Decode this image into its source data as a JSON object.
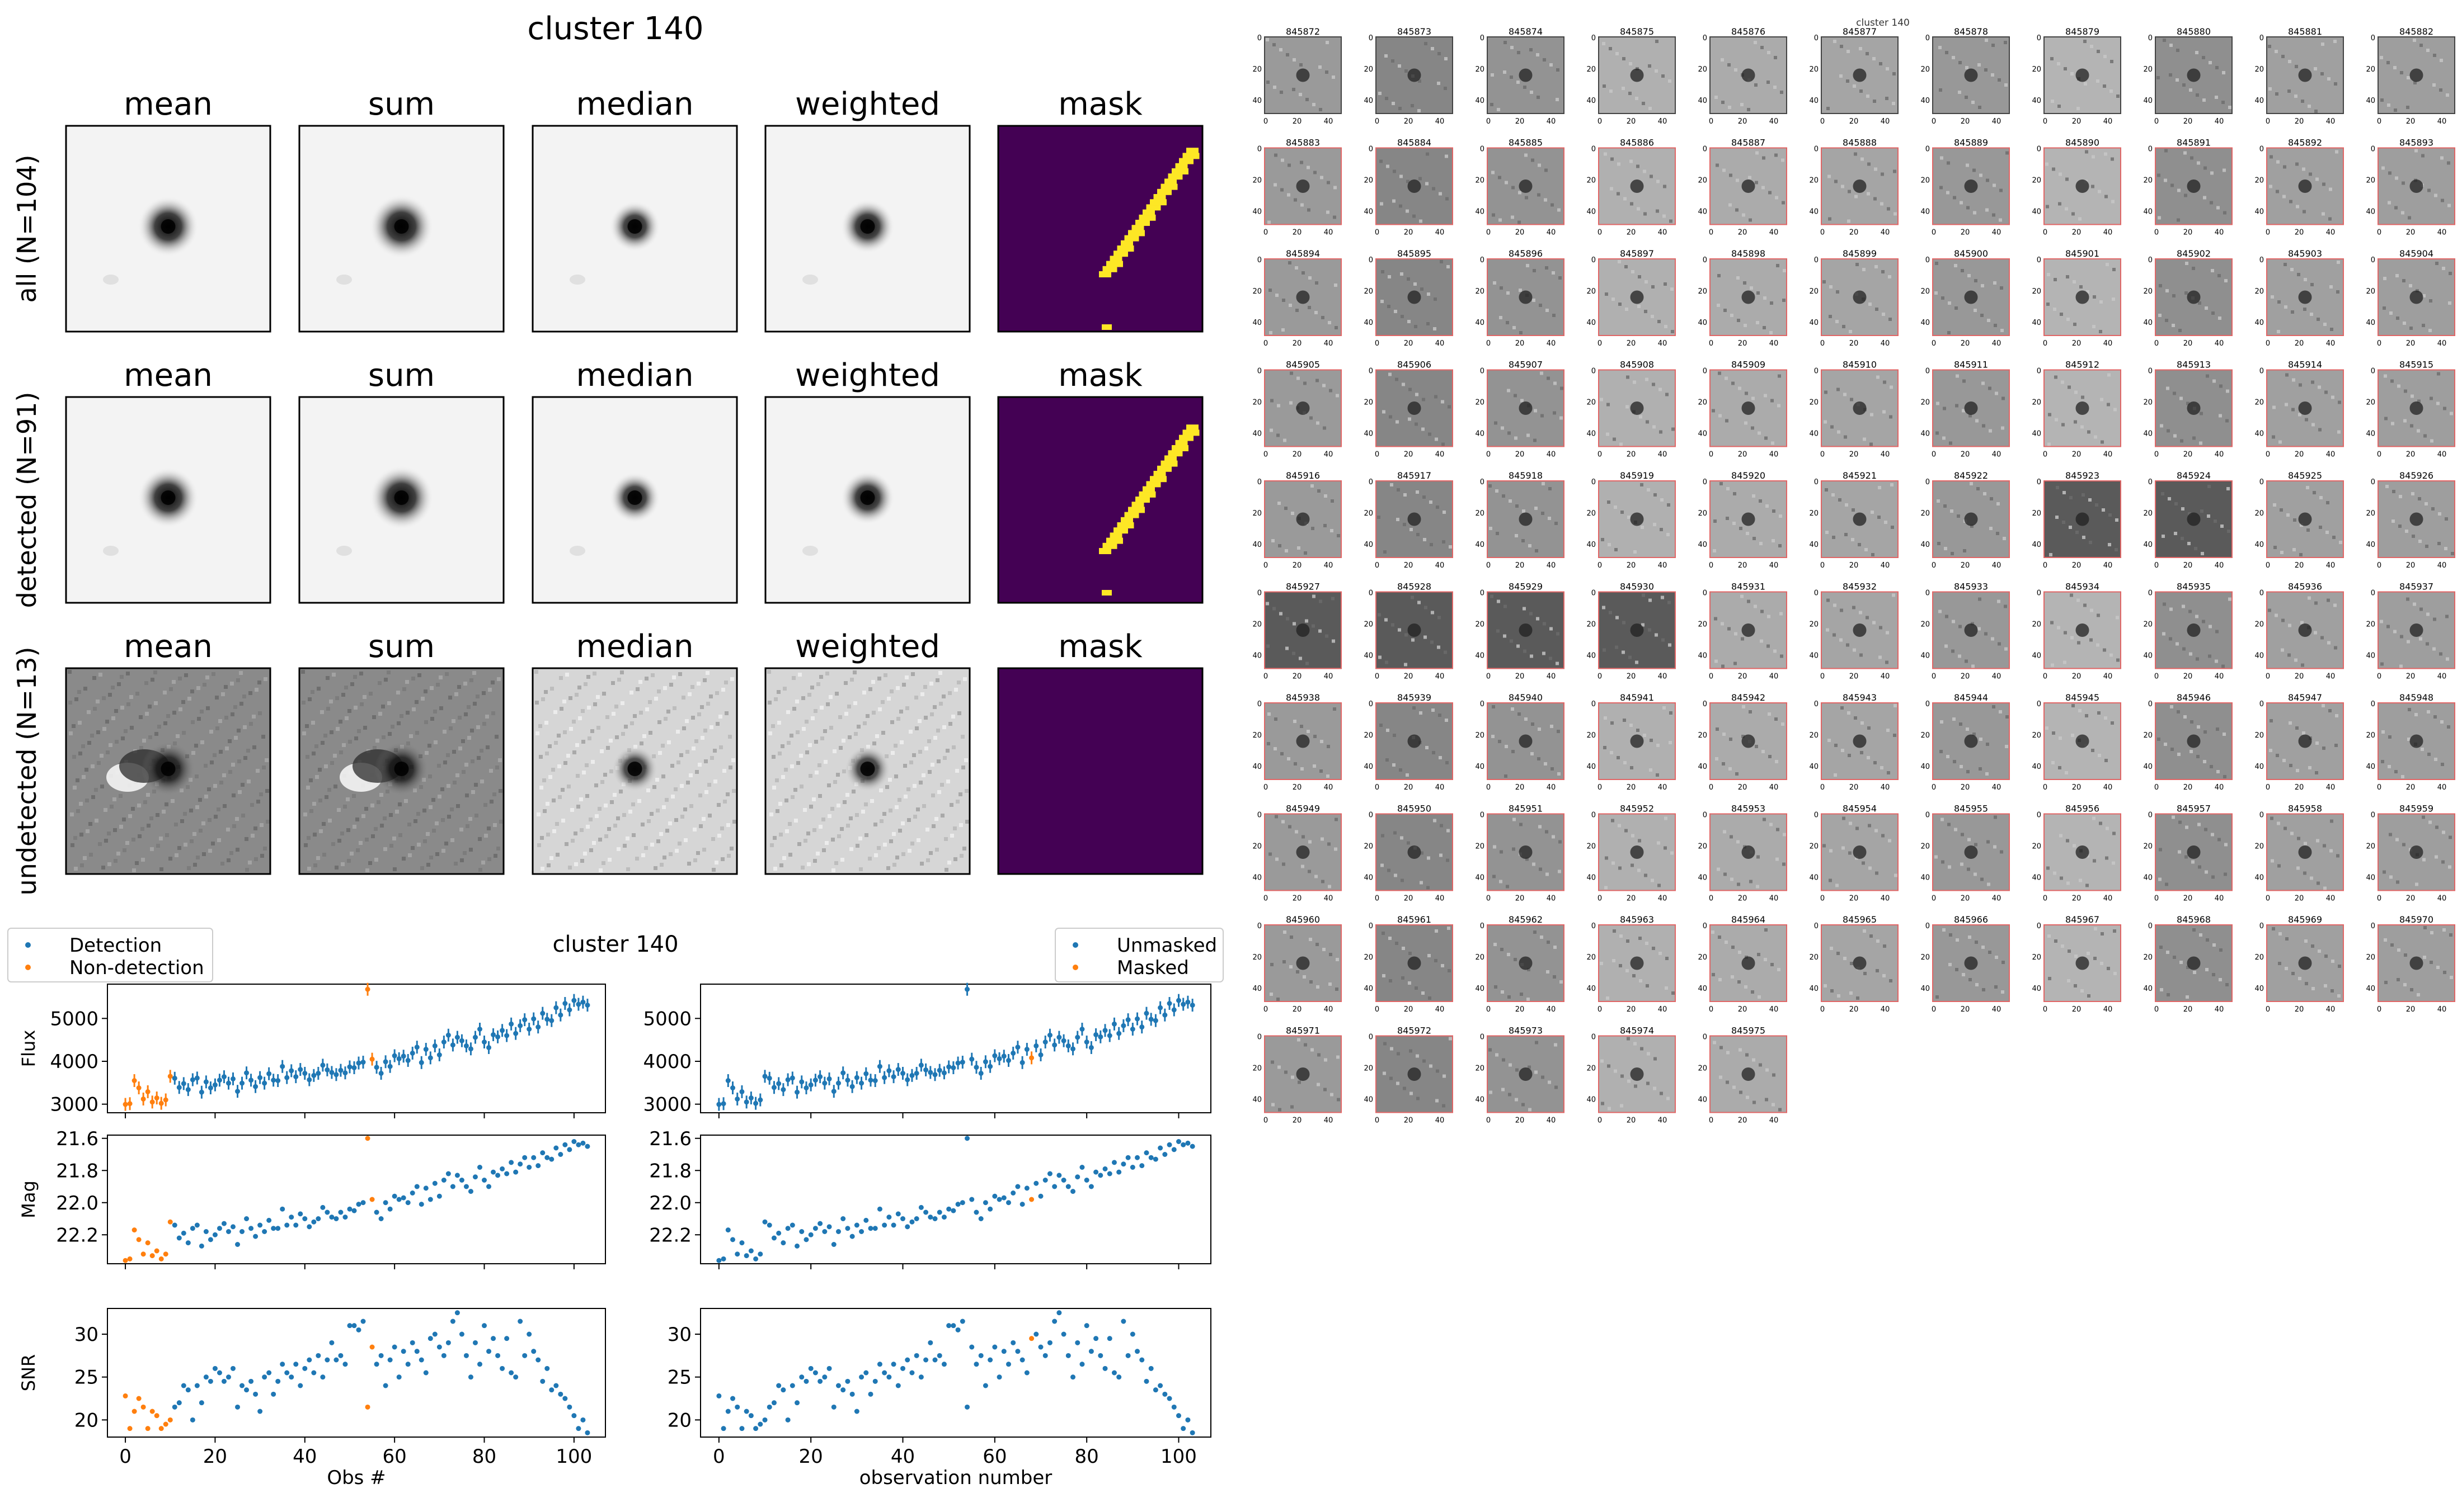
{
  "figure_title": "cluster 140",
  "lightcurve_title": "cluster 140",
  "stamp_panel": {
    "column_titles": [
      "mean",
      "sum",
      "median",
      "weighted",
      "mask"
    ],
    "row_labels": [
      "all (N=104)",
      "detected (N=91)",
      "undetected (N=13)"
    ]
  },
  "thumbnail_grid": {
    "overlapping_title": "cluster 140",
    "ids": [
      "845872",
      "845873",
      "845874",
      "845875",
      "845876",
      "845877",
      "845878",
      "845879",
      "845880",
      "845881",
      "845882",
      "845883",
      "845884",
      "845885",
      "845886",
      "845887",
      "845888",
      "845889",
      "845890",
      "845891",
      "845892",
      "845893",
      "845894",
      "845895",
      "845896",
      "845897",
      "845898",
      "845899",
      "845900",
      "845901",
      "845902",
      "845903",
      "845904",
      "845905",
      "845906",
      "845907",
      "845908",
      "845909",
      "845910",
      "845911",
      "845912",
      "845913",
      "845914",
      "845915",
      "845916",
      "845917",
      "845918",
      "845919",
      "845920",
      "845921",
      "845922",
      "845923",
      "845924",
      "845925",
      "845926",
      "845927",
      "845928",
      "845929",
      "845930",
      "845931",
      "845932",
      "845933",
      "845934",
      "845935",
      "845936",
      "845937",
      "845938",
      "845939",
      "845940",
      "845941",
      "845942",
      "845943",
      "845944",
      "845945",
      "845946",
      "845947",
      "845948",
      "845949",
      "845950",
      "845951",
      "845952",
      "845953",
      "845954",
      "845955",
      "845956",
      "845957",
      "845958",
      "845959",
      "845960",
      "845961",
      "845962",
      "845963",
      "845964",
      "845965",
      "845966",
      "845967",
      "845968",
      "845969",
      "845970",
      "845971",
      "845972",
      "845973",
      "845974",
      "845975"
    ],
    "x_ticks": [
      "0",
      "20",
      "40"
    ],
    "y_ticks": [
      "0",
      "20",
      "40"
    ],
    "first_no_border_ids": [
      "845872",
      "845873",
      "845874",
      "845875",
      "845876",
      "845877",
      "845878",
      "845879",
      "845880",
      "845881",
      "845882"
    ],
    "border_color": "#e06666"
  },
  "colors": {
    "detection": "#1f77b4",
    "non_detection": "#ff7f0e",
    "mask_bg": "#440154",
    "mask_fg": "#fde725"
  },
  "chart_data": [
    {
      "type": "scatter",
      "title": "cluster 140",
      "legend": [
        "Detection",
        "Non-detection"
      ],
      "legend_placement": "upper-left",
      "xlabel": "Obs #",
      "panels": [
        {
          "ylabel": "Flux",
          "ylim": [
            2800,
            5800
          ],
          "yticks": [
            "5000",
            "4000",
            "3000"
          ]
        },
        {
          "ylabel": "Mag",
          "ylim": [
            22.38,
            21.58
          ],
          "yticks": [
            "21.6",
            "21.8",
            "22.0",
            "22.2"
          ]
        },
        {
          "ylabel": "SNR",
          "ylim": [
            18,
            33
          ],
          "yticks": [
            "30",
            "25",
            "20"
          ]
        }
      ],
      "xlim": [
        -4,
        107
      ],
      "xticks": [
        "0",
        "20",
        "40",
        "60",
        "80",
        "100"
      ],
      "non_detection_obs": [
        0,
        1,
        2,
        3,
        4,
        5,
        6,
        7,
        8,
        9,
        10,
        54,
        55
      ],
      "flux": [
        2995,
        3012,
        3550,
        3380,
        3120,
        3290,
        3050,
        3145,
        3020,
        3100,
        3650,
        3605,
        3390,
        3480,
        3340,
        3570,
        3610,
        3280,
        3520,
        3380,
        3450,
        3560,
        3640,
        3490,
        3590,
        3300,
        3490,
        3730,
        3560,
        3410,
        3620,
        3490,
        3710,
        3560,
        3550,
        3880,
        3620,
        3780,
        3640,
        3810,
        3720,
        3570,
        3670,
        3720,
        3910,
        3800,
        3740,
        3690,
        3790,
        3730,
        3870,
        3850,
        3960,
        3980,
        5680,
        4050,
        3860,
        3720,
        3990,
        3880,
        4130,
        4060,
        4120,
        4020,
        4190,
        4330,
        3970,
        4280,
        4080,
        4360,
        4150,
        4450,
        4610,
        4380,
        4560,
        4480,
        4360,
        4290,
        4560,
        4750,
        4450,
        4320,
        4620,
        4570,
        4720,
        4600,
        4870,
        4650,
        4830,
        4970,
        4750,
        4990,
        4800,
        5120,
        4980,
        4950,
        5250,
        5080,
        5350,
        5200,
        5420,
        5330,
        5380,
        5310
      ],
      "flux_err": 150,
      "mag": [
        22.36,
        22.35,
        22.17,
        22.23,
        22.32,
        22.25,
        22.33,
        22.3,
        22.35,
        22.32,
        22.12,
        22.14,
        22.22,
        22.19,
        22.25,
        22.16,
        22.14,
        22.27,
        22.18,
        22.23,
        22.2,
        22.16,
        22.13,
        22.18,
        22.15,
        22.26,
        22.18,
        22.1,
        22.16,
        22.21,
        22.14,
        22.18,
        22.11,
        22.16,
        22.16,
        22.04,
        22.14,
        22.09,
        22.14,
        22.07,
        22.1,
        22.15,
        22.12,
        22.1,
        22.03,
        22.06,
        22.09,
        22.1,
        22.06,
        22.09,
        22.04,
        22.05,
        22.01,
        22.0,
        21.6,
        21.98,
        22.06,
        22.1,
        22.0,
        22.04,
        21.96,
        21.98,
        21.97,
        22.0,
        21.94,
        21.9,
        22.01,
        21.91,
        21.98,
        21.88,
        21.96,
        21.86,
        21.82,
        21.9,
        21.83,
        21.86,
        21.9,
        21.93,
        21.84,
        21.78,
        21.86,
        21.9,
        21.81,
        21.83,
        21.79,
        21.82,
        21.75,
        21.81,
        21.76,
        21.72,
        21.78,
        21.72,
        21.77,
        21.69,
        21.72,
        21.73,
        21.66,
        21.7,
        21.64,
        21.67,
        21.62,
        21.64,
        21.63,
        21.65
      ],
      "snr": [
        22.8,
        19.0,
        21.0,
        22.5,
        21.5,
        19.0,
        21.0,
        20.5,
        19.0,
        19.5,
        20.0,
        21.5,
        22.0,
        24.0,
        23.5,
        20.0,
        24.0,
        22.0,
        25.0,
        24.5,
        26.0,
        25.5,
        24.5,
        25.0,
        26.0,
        21.5,
        24.0,
        23.5,
        24.5,
        23.0,
        21.0,
        25.0,
        25.5,
        23.0,
        24.5,
        26.5,
        25.5,
        25.0,
        26.5,
        24.0,
        26.0,
        27.0,
        25.5,
        27.5,
        25.0,
        27.0,
        29.0,
        27.0,
        27.5,
        26.5,
        31.0,
        31.0,
        30.5,
        31.5,
        21.5,
        28.5,
        26.5,
        27.5,
        24.0,
        27.0,
        28.5,
        25.0,
        28.0,
        26.5,
        29.0,
        28.0,
        27.0,
        25.5,
        29.5,
        30.0,
        28.5,
        27.5,
        29.0,
        31.5,
        32.5,
        30.0,
        27.5,
        25.0,
        29.0,
        26.5,
        31.0,
        28.0,
        29.5,
        27.5,
        26.0,
        29.5,
        25.5,
        25.0,
        31.5,
        27.5,
        30.0,
        28.0,
        27.0,
        24.5,
        26.0,
        23.5,
        24.0,
        23.0,
        22.5,
        21.5,
        20.5,
        19.0,
        20.0,
        18.5
      ]
    },
    {
      "type": "scatter",
      "legend": [
        "Unmasked",
        "Masked"
      ],
      "legend_placement": "upper-right",
      "xlabel": "observation number",
      "panels": [
        {
          "ylim": [
            2800,
            5800
          ],
          "yticks": [
            "5000",
            "4000",
            "3000"
          ]
        },
        {
          "ylim": [
            22.38,
            21.58
          ],
          "yticks": [
            "21.6",
            "21.8",
            "22.0",
            "22.2"
          ]
        },
        {
          "ylim": [
            18,
            33
          ],
          "yticks": [
            "30",
            "25",
            "20"
          ]
        }
      ],
      "xlim": [
        -4,
        107
      ],
      "xticks": [
        "0",
        "20",
        "40",
        "60",
        "80",
        "100"
      ],
      "masked_obs": [
        68
      ],
      "uses_same_series": true
    }
  ]
}
